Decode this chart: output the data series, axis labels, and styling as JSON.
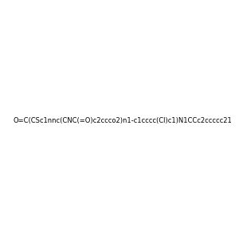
{
  "smiles": "O=C(CSc1nnc(CNC(=O)c2ccco2)n1-c1cccc(Cl)c1)N1CCc2ccccc21",
  "image_size": 300,
  "background_color": "#f0f0f0",
  "title": ""
}
